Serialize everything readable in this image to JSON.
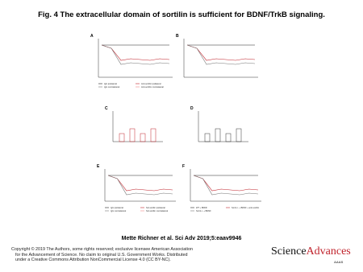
{
  "header": {
    "title": "Fig. 4 The extracellular domain of sortilin is sufficient for BDNF/TrkB signaling."
  },
  "figure": {
    "panels": [
      {
        "label": "A",
        "legend": [
          "IgG ipsilateral",
          "Anti-sortilin ipsilateral",
          "IgG contralateral",
          "Anti-sortilin contralateral"
        ]
      },
      {
        "label": "B",
        "legend": []
      },
      {
        "label": "C",
        "legend": []
      },
      {
        "label": "D",
        "legend": []
      },
      {
        "label": "E",
        "legend": [
          "IgG ipsilateral",
          "Sol-sortilin ipsilateral",
          "IgG contralateral",
          "Sol-sortilin contralateral"
        ]
      },
      {
        "label": "F",
        "legend": [
          "WT + BDNF",
          "Sort1-/- + BDNF + anti-sortilin",
          "Sort1-/- + BDNF"
        ]
      }
    ]
  },
  "citation": "Mette Richner et al. Sci Adv 2019;5:eaav9946",
  "footer": {
    "copyright": [
      "Copyright © 2019 The Authors, some rights reserved; exclusive licensee American Association",
      "for the Advancement of Science. No claim to original U.S. Government Works. Distributed",
      "under a Creative Commons Attribution NonCommercial License 4.0 (CC BY-NC)."
    ]
  },
  "logo": {
    "first": "Science",
    "second": "Advances",
    "sub": "AAAS"
  }
}
